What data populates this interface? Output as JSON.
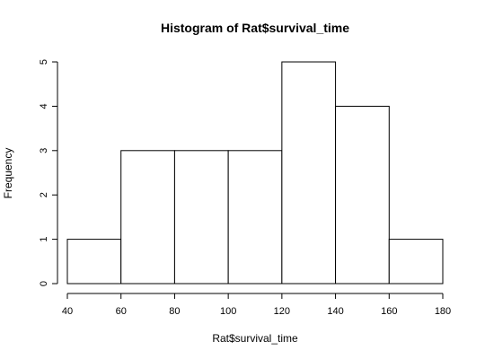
{
  "chart_data": {
    "type": "bar",
    "title": "Histogram of Rat$survival_time",
    "xlabel": "Rat$survival_time",
    "ylabel": "Frequency",
    "bins": [
      {
        "from": 40,
        "to": 60,
        "count": 1
      },
      {
        "from": 60,
        "to": 80,
        "count": 3
      },
      {
        "from": 80,
        "to": 100,
        "count": 3
      },
      {
        "from": 100,
        "to": 120,
        "count": 3
      },
      {
        "from": 120,
        "to": 140,
        "count": 5
      },
      {
        "from": 140,
        "to": 160,
        "count": 4
      },
      {
        "from": 160,
        "to": 180,
        "count": 1
      }
    ],
    "xlim": [
      40,
      180
    ],
    "ylim": [
      0,
      5
    ],
    "x_ticks": [
      40,
      60,
      80,
      100,
      120,
      140,
      160,
      180
    ],
    "y_ticks": [
      0,
      1,
      2,
      3,
      4,
      5
    ],
    "grid": false,
    "colors": {
      "bar_fill": "#ffffff",
      "bar_stroke": "#000000"
    }
  }
}
